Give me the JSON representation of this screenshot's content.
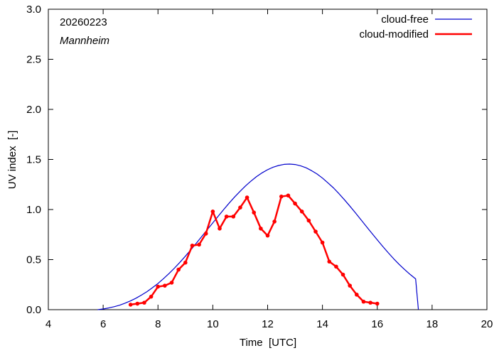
{
  "chart_data": {
    "type": "line",
    "date_label": "20260223",
    "location": "Mannheim",
    "xlabel": "Time  [UTC]",
    "ylabel": "UV index  [-]",
    "xlim": [
      4,
      20
    ],
    "ylim": [
      0,
      3.0
    ],
    "xticks": [
      4,
      6,
      8,
      10,
      12,
      14,
      16,
      18,
      20
    ],
    "yticks": [
      0.0,
      0.5,
      1.0,
      1.5,
      2.0,
      2.5,
      3.0
    ],
    "xtick_labels": [
      "4",
      "6",
      "8",
      "10",
      "12",
      "14",
      "16",
      "18",
      "20"
    ],
    "ytick_labels": [
      "0.0",
      "0.5",
      "1.0",
      "1.5",
      "2.0",
      "2.5",
      "3.0"
    ],
    "grid": false,
    "legend_position": "top-right",
    "series": [
      {
        "name": "cloud-free",
        "color": "#0000cc",
        "markers": false,
        "x": [
          5.8,
          6.0,
          6.2,
          6.4,
          6.6,
          6.8,
          7.0,
          7.2,
          7.4,
          7.6,
          7.8,
          8.0,
          8.2,
          8.4,
          8.6,
          8.8,
          9.0,
          9.2,
          9.4,
          9.6,
          9.8,
          10.0,
          10.2,
          10.4,
          10.6,
          10.8,
          11.0,
          11.2,
          11.4,
          11.6,
          11.8,
          12.0,
          12.2,
          12.4,
          12.6,
          12.8,
          13.0,
          13.2,
          13.4,
          13.6,
          13.8,
          14.0,
          14.2,
          14.4,
          14.6,
          14.8,
          15.0,
          15.2,
          15.4,
          15.6,
          15.8,
          16.0,
          16.2,
          16.4,
          16.6,
          16.8,
          17.0,
          17.2,
          17.4,
          17.5
        ],
        "y": [
          0.0,
          0.007,
          0.017,
          0.03,
          0.045,
          0.065,
          0.088,
          0.115,
          0.146,
          0.18,
          0.22,
          0.262,
          0.31,
          0.36,
          0.415,
          0.473,
          0.534,
          0.598,
          0.664,
          0.731,
          0.799,
          0.867,
          0.935,
          1.001,
          1.065,
          1.126,
          1.183,
          1.237,
          1.286,
          1.33,
          1.367,
          1.398,
          1.423,
          1.44,
          1.451,
          1.454,
          1.45,
          1.437,
          1.417,
          1.389,
          1.355,
          1.314,
          1.267,
          1.216,
          1.159,
          1.098,
          1.034,
          0.968,
          0.9,
          0.832,
          0.764,
          0.697,
          0.631,
          0.568,
          0.508,
          0.452,
          0.4,
          0.352,
          0.308,
          0.0
        ]
      },
      {
        "name": "cloud-modified",
        "color": "#ff0000",
        "markers": true,
        "x": [
          7.0,
          7.25,
          7.5,
          7.75,
          8.0,
          8.25,
          8.5,
          8.75,
          9.0,
          9.25,
          9.5,
          9.75,
          10.0,
          10.25,
          10.5,
          10.75,
          11.0,
          11.25,
          11.5,
          11.75,
          12.0,
          12.25,
          12.5,
          12.75,
          13.0,
          13.25,
          13.5,
          13.75,
          14.0,
          14.25,
          14.5,
          14.75,
          15.0,
          15.25,
          15.5,
          15.75,
          16.0
        ],
        "y": [
          0.05,
          0.06,
          0.07,
          0.13,
          0.23,
          0.24,
          0.27,
          0.4,
          0.47,
          0.64,
          0.65,
          0.76,
          0.98,
          0.81,
          0.93,
          0.93,
          1.02,
          1.12,
          0.97,
          0.81,
          0.74,
          0.88,
          1.13,
          1.14,
          1.06,
          0.98,
          0.89,
          0.78,
          0.67,
          0.48,
          0.43,
          0.35,
          0.24,
          0.15,
          0.08,
          0.07,
          0.06
        ]
      }
    ]
  }
}
